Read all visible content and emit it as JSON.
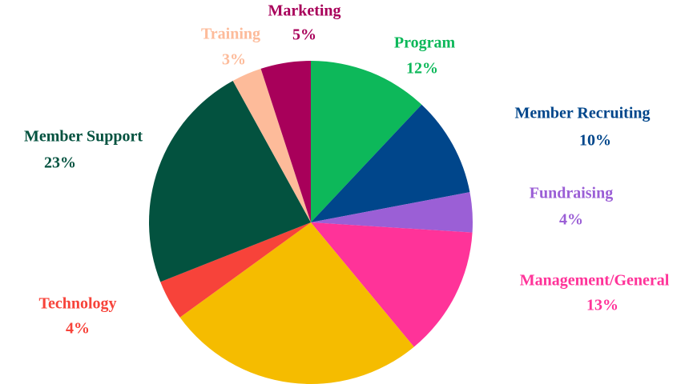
{
  "chart_data": {
    "type": "pie",
    "categories": [
      "Program",
      "Member Recruiting",
      "Fundraising",
      "Management/General",
      null,
      "Technology",
      "Member Support",
      "Training",
      "Marketing"
    ],
    "values": [
      12,
      10,
      4,
      13,
      26,
      4,
      23,
      3,
      5
    ],
    "value_labels": [
      "12%",
      "10%",
      "4%",
      "13%",
      null,
      "4%",
      "23%",
      "3%",
      "5%"
    ],
    "colors": [
      "#0db85a",
      "#00468b",
      "#9b5fd6",
      "#ff3399",
      "#f5bc00",
      "#f7433a",
      "#03523f",
      "#fdbb9a",
      "#a8005a"
    ]
  }
}
